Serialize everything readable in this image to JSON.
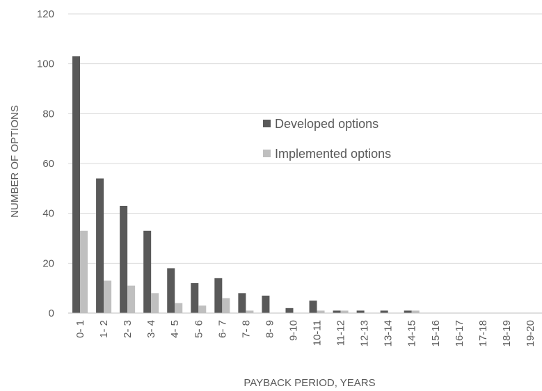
{
  "chart_data": {
    "type": "bar",
    "title": "",
    "xlabel": "PAYBACK PERIOD, YEARS",
    "ylabel": "NUMBER OF OPTIONS",
    "ylim": [
      0,
      120
    ],
    "yticks": [
      0,
      20,
      40,
      60,
      80,
      100,
      120
    ],
    "grid": true,
    "legend_position": "center",
    "categories": [
      "0- 1",
      "1- 2",
      "2- 3",
      "3- 4",
      "4- 5",
      "5- 6",
      "6- 7",
      "7- 8",
      "8- 9",
      "9-10",
      "10-11",
      "11-12",
      "12-13",
      "13-14",
      "14-15",
      "15-16",
      "16-17",
      "17-18",
      "18-19",
      "19-20"
    ],
    "series": [
      {
        "name": "Developed options",
        "color": "#595959",
        "values": [
          103,
          54,
          43,
          33,
          18,
          12,
          14,
          8,
          7,
          2,
          5,
          1,
          1,
          1,
          1,
          0,
          0,
          0,
          0,
          0
        ]
      },
      {
        "name": "Implemented options",
        "color": "#bfbfbf",
        "values": [
          33,
          13,
          11,
          8,
          4,
          3,
          6,
          1,
          0,
          0,
          1,
          1,
          0,
          0,
          1,
          0,
          0,
          0,
          0,
          0
        ]
      }
    ]
  }
}
